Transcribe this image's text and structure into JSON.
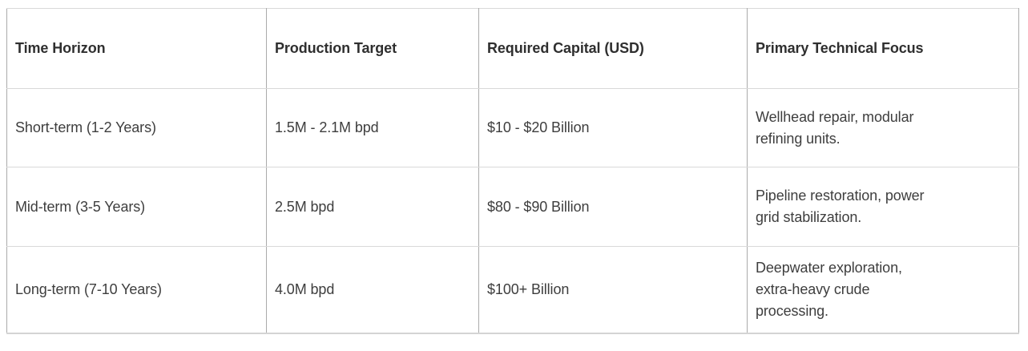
{
  "table": {
    "columns": [
      "Time Horizon",
      "Production Target",
      "Required Capital (USD)",
      "Primary Technical Focus"
    ],
    "rows": [
      {
        "time_horizon": "Short-term (1-2 Years)",
        "production_target": "1.5M - 2.1M bpd",
        "required_capital": "$10 - $20 Billion",
        "primary_focus": "Wellhead repair, modular\nrefining units."
      },
      {
        "time_horizon": "Mid-term (3-5 Years)",
        "production_target": "2.5M bpd",
        "required_capital": "$80 - $90 Billion",
        "primary_focus": "Pipeline restoration, power\ngrid stabilization."
      },
      {
        "time_horizon": "Long-term (7-10 Years)",
        "production_target": "4.0M bpd",
        "required_capital": "$100+ Billion",
        "primary_focus": "Deepwater exploration,\nextra-heavy crude\nprocessing."
      }
    ]
  },
  "colors": {
    "vertical_border": "#ababab",
    "horizontal_border": "#d9d9d9",
    "header_text": "#2f2f2f",
    "body_text": "#3e3e3e",
    "background": "#ffffff"
  }
}
